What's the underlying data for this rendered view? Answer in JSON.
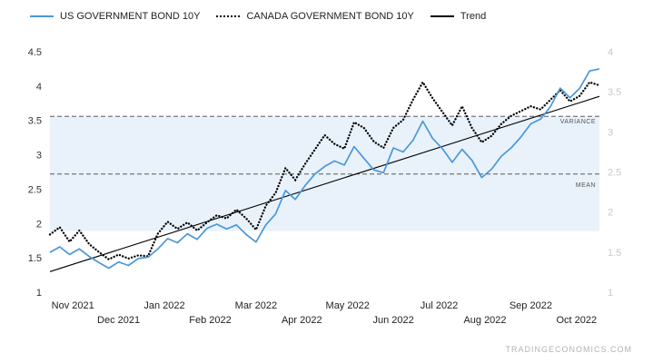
{
  "legend": [
    {
      "label": "US GOVERNMENT BOND 10Y",
      "color": "#4a97d9",
      "style": "solid"
    },
    {
      "label": "CANADA GOVERNMENT BOND 10Y",
      "color": "#000000",
      "style": "dotted"
    },
    {
      "label": "Trend",
      "color": "#000000",
      "style": "solid"
    }
  ],
  "annotations": {
    "variance_label": "VARIANCE",
    "mean_label": "MEAN"
  },
  "watermark": "TRADINGECONOMICS.COM",
  "chart_data": {
    "type": "line",
    "title": "",
    "x_labels_row1": [
      "Nov 2021",
      "Jan 2022",
      "Mar 2022",
      "May 2022",
      "Jul 2022",
      "Sep 2022"
    ],
    "x_labels_row2": [
      "Dec 2021",
      "Feb 2022",
      "Apr 2022",
      "Jun 2022",
      "Aug 2022",
      "Oct 2022"
    ],
    "left_axis": {
      "min": 1,
      "max": 4.5,
      "ticks": [
        1,
        1.5,
        2,
        2.5,
        3,
        3.5,
        4,
        4.5
      ]
    },
    "right_axis": {
      "min": 1,
      "max": 4,
      "ticks": [
        1,
        1.5,
        2,
        2.5,
        3,
        3.5,
        4
      ]
    },
    "series": [
      {
        "name": "US GOVERNMENT BOND 10Y",
        "axis": "left",
        "color": "#4a97d9",
        "style": "solid",
        "values": [
          1.58,
          1.66,
          1.55,
          1.63,
          1.52,
          1.43,
          1.35,
          1.44,
          1.39,
          1.49,
          1.51,
          1.63,
          1.78,
          1.72,
          1.85,
          1.77,
          1.93,
          1.99,
          1.92,
          1.98,
          1.84,
          1.73,
          1.98,
          2.14,
          2.48,
          2.35,
          2.55,
          2.72,
          2.83,
          2.91,
          2.85,
          3.12,
          2.95,
          2.78,
          2.74,
          3.1,
          3.04,
          3.21,
          3.49,
          3.24,
          3.09,
          2.89,
          3.08,
          2.92,
          2.67,
          2.79,
          2.98,
          3.1,
          3.26,
          3.45,
          3.52,
          3.7,
          3.97,
          3.83,
          3.97,
          4.22,
          4.25
        ]
      },
      {
        "name": "CANADA GOVERNMENT BOND 10Y",
        "axis": "right",
        "color": "#000000",
        "style": "dotted",
        "values": [
          1.72,
          1.81,
          1.63,
          1.77,
          1.6,
          1.5,
          1.41,
          1.47,
          1.42,
          1.46,
          1.45,
          1.73,
          1.88,
          1.79,
          1.87,
          1.77,
          1.87,
          1.96,
          1.92,
          2.03,
          1.92,
          1.78,
          2.08,
          2.24,
          2.55,
          2.4,
          2.6,
          2.78,
          2.96,
          2.85,
          2.79,
          3.12,
          3.05,
          2.88,
          2.8,
          3.05,
          3.15,
          3.4,
          3.62,
          3.42,
          3.25,
          3.08,
          3.32,
          3.05,
          2.87,
          2.95,
          3.1,
          3.2,
          3.26,
          3.32,
          3.28,
          3.4,
          3.52,
          3.38,
          3.45,
          3.62,
          3.58
        ]
      }
    ],
    "trend": {
      "axis": "left",
      "start": 1.3,
      "end": 3.85
    },
    "mean": 2.72,
    "variance_level": 3.56,
    "band": {
      "from": 1.89,
      "to": 3.56,
      "color": "#e9f2fb"
    }
  }
}
